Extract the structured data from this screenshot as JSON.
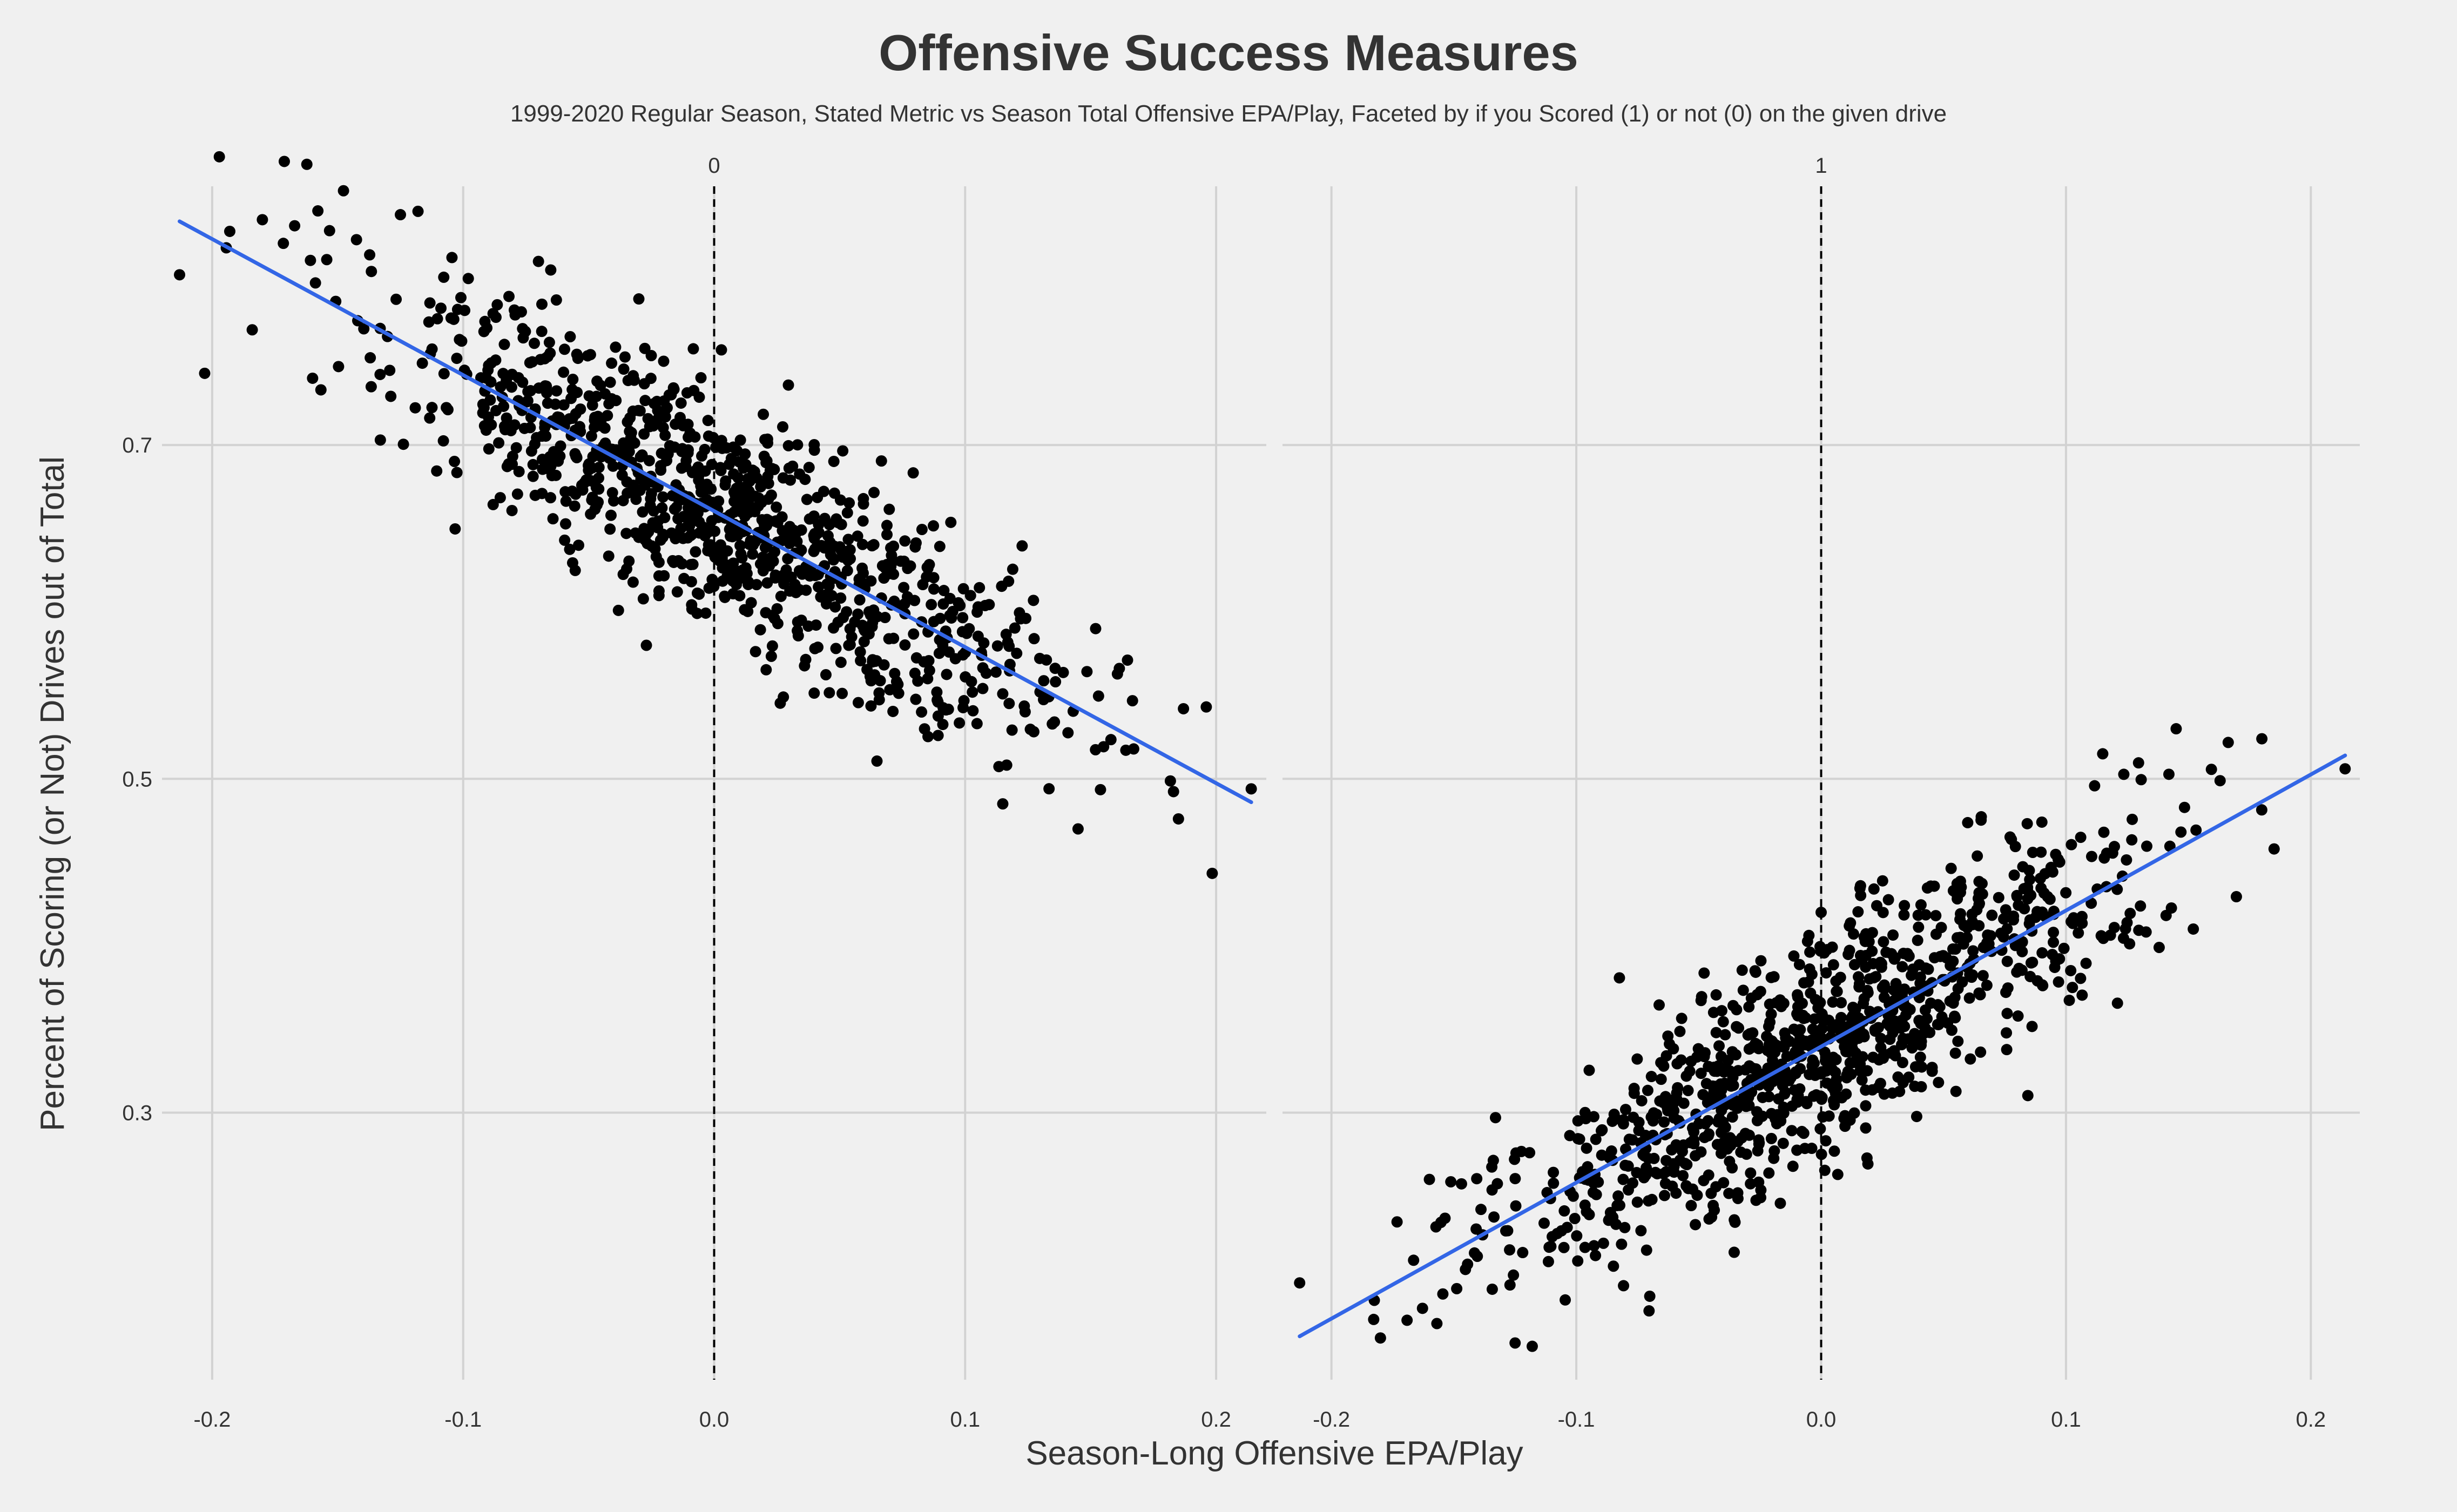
{
  "chart_data": {
    "type": "scatter",
    "title": "Offensive Success Measures",
    "subtitle": "1999-2020 Regular Season, Stated Metric vs Season Total Offensive EPA/Play, Faceted by if you Scored (1) or not (0) on the given drive",
    "xlabel": "Season-Long Offensive EPA/Play",
    "ylabel": "Percent of Scoring (or Not) Drives out of Total",
    "xlim": [
      -0.22,
      0.22
    ],
    "ylim": [
      0.14,
      0.855
    ],
    "xticks": [
      -0.2,
      -0.1,
      0.0,
      0.1,
      0.2
    ],
    "xtick_labels": [
      "-0.2",
      "-0.1",
      "0.0",
      "0.1",
      "0.2"
    ],
    "yticks": [
      0.3,
      0.5,
      0.7
    ],
    "ytick_labels": [
      "0.3",
      "0.5",
      "0.7"
    ],
    "grid": true,
    "reference_line": {
      "x": 0.0,
      "style": "dashed",
      "color": "#000000"
    },
    "point_color": "#000000",
    "trend_color": "#3366e6",
    "panels": [
      {
        "label": "0",
        "trend": {
          "x": [
            -0.213,
            0.214
          ],
          "y": [
            0.834,
            0.486
          ]
        },
        "n_points": 1024,
        "x_sd": 0.0665,
        "noise_sd": 0.033,
        "outliers": [
          {
            "x": -0.213,
            "y": 0.802
          },
          {
            "x": -0.193,
            "y": 0.828
          },
          {
            "x": -0.18,
            "y": 0.835
          },
          {
            "x": -0.125,
            "y": 0.838
          },
          {
            "x": -0.118,
            "y": 0.84
          },
          {
            "x": -0.07,
            "y": 0.81
          },
          {
            "x": -0.16,
            "y": 0.74
          },
          {
            "x": -0.133,
            "y": 0.703
          },
          {
            "x": 0.115,
            "y": 0.485
          },
          {
            "x": 0.145,
            "y": 0.47
          },
          {
            "x": 0.185,
            "y": 0.476
          },
          {
            "x": 0.214,
            "y": 0.494
          },
          {
            "x": 0.187,
            "y": 0.542
          },
          {
            "x": 0.152,
            "y": 0.59
          },
          {
            "x": -0.027,
            "y": 0.58
          }
        ]
      },
      {
        "label": "1",
        "trend": {
          "x": [
            -0.213,
            0.214
          ],
          "y": [
            0.166,
            0.514
          ]
        },
        "n_points": 1024,
        "x_sd": 0.0665,
        "noise_sd": 0.033,
        "outliers": [
          {
            "x": -0.213,
            "y": 0.198
          },
          {
            "x": -0.18,
            "y": 0.165
          },
          {
            "x": -0.118,
            "y": 0.16
          },
          {
            "x": -0.125,
            "y": 0.162
          },
          {
            "x": 0.214,
            "y": 0.506
          },
          {
            "x": 0.18,
            "y": 0.524
          },
          {
            "x": 0.145,
            "y": 0.53
          },
          {
            "x": 0.115,
            "y": 0.515
          },
          {
            "x": 0.185,
            "y": 0.458
          },
          {
            "x": 0.152,
            "y": 0.41
          },
          {
            "x": -0.16,
            "y": 0.26
          },
          {
            "x": -0.07,
            "y": 0.19
          },
          {
            "x": -0.133,
            "y": 0.297
          },
          {
            "x": 0.0,
            "y": 0.42
          },
          {
            "x": -0.027,
            "y": 0.385
          }
        ]
      }
    ]
  }
}
